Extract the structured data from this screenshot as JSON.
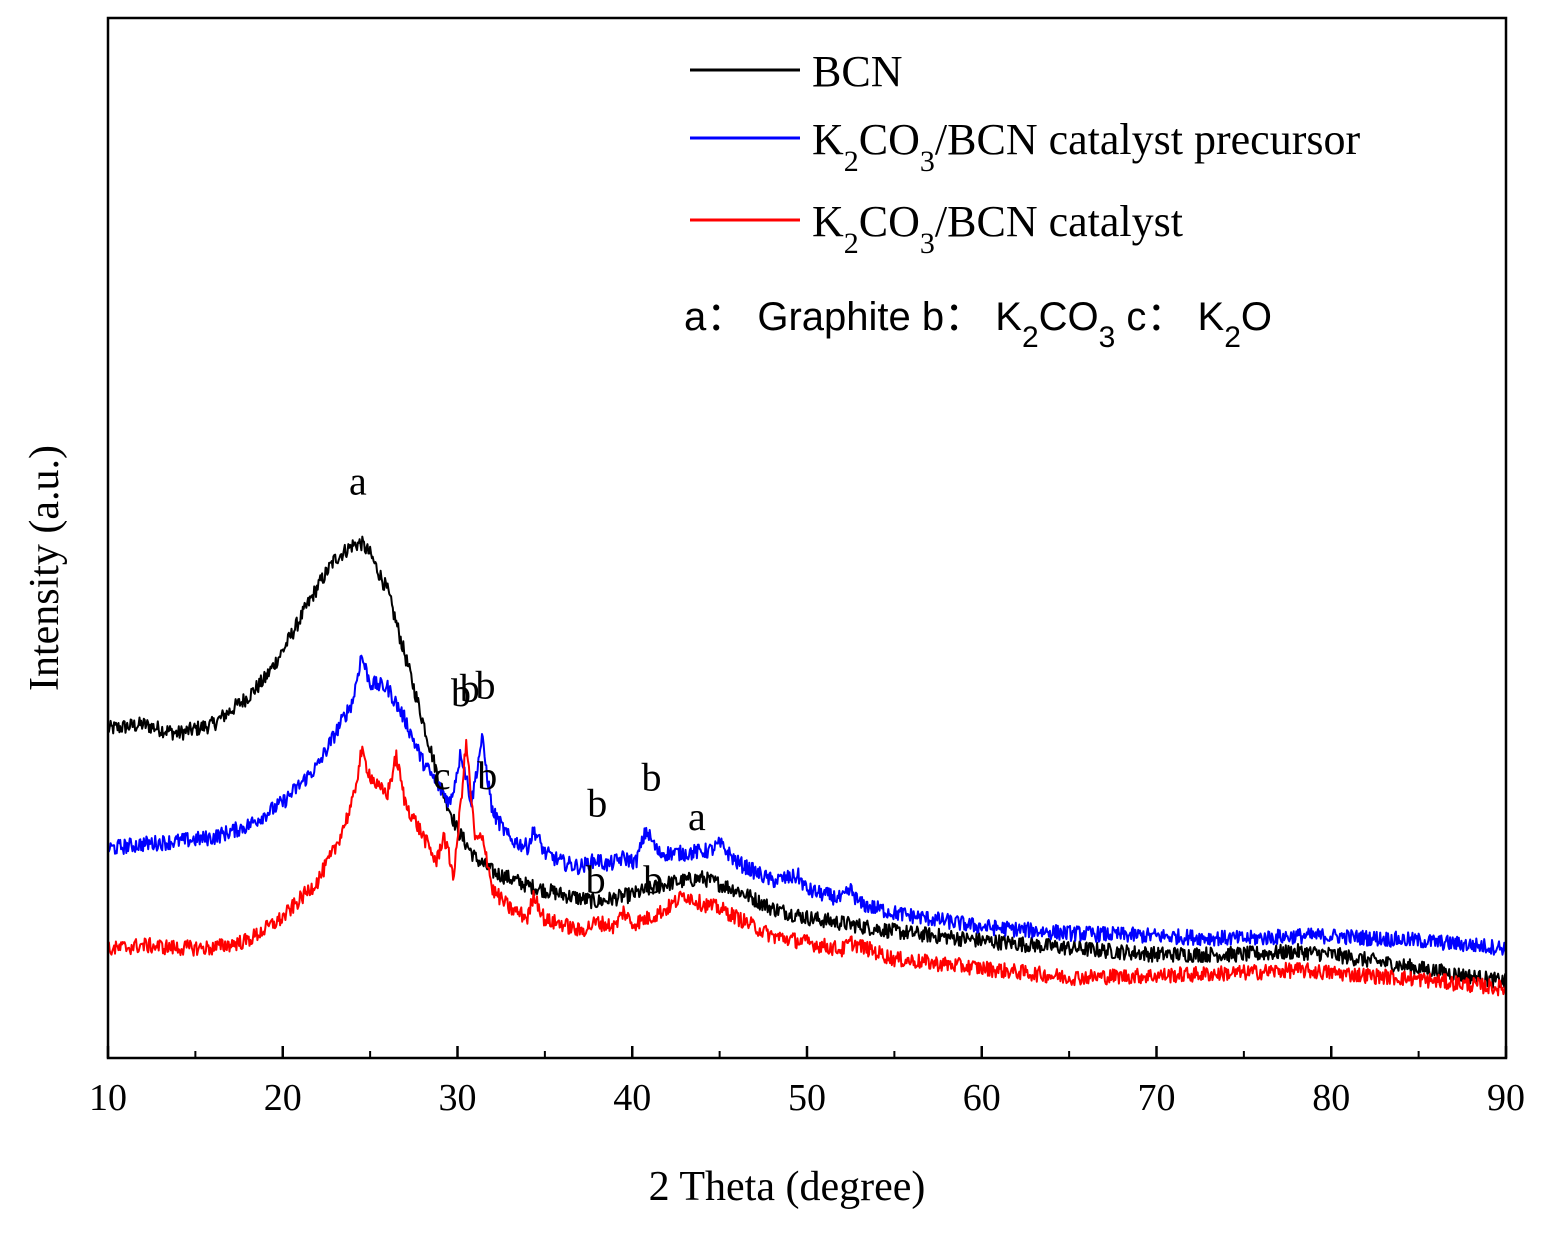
{
  "chart_data": {
    "type": "line",
    "xlabel": "2 Theta (degree)",
    "ylabel": "Intensity (a.u.)",
    "xlim": [
      10,
      90
    ],
    "x_ticks": [
      "10",
      "20",
      "30",
      "40",
      "50",
      "60",
      "70",
      "80",
      "90"
    ],
    "y_ticks_shown": false,
    "legend_position": "top-right",
    "series": [
      {
        "name": "BCN",
        "color": "#000000",
        "points": [
          [
            10,
            3.0
          ],
          [
            12,
            3.05
          ],
          [
            14,
            2.95
          ],
          [
            16,
            3.05
          ],
          [
            18,
            3.35
          ],
          [
            19,
            3.55
          ],
          [
            20,
            3.85
          ],
          [
            21,
            4.2
          ],
          [
            22,
            4.55
          ],
          [
            23,
            4.85
          ],
          [
            24,
            5.0
          ],
          [
            24.5,
            5.02
          ],
          [
            25,
            4.9
          ],
          [
            26,
            4.5
          ],
          [
            27,
            3.8
          ],
          [
            28,
            3.1
          ],
          [
            29,
            2.4
          ],
          [
            30,
            1.9
          ],
          [
            31,
            1.6
          ],
          [
            32,
            1.45
          ],
          [
            34,
            1.3
          ],
          [
            36,
            1.2
          ],
          [
            38,
            1.12
          ],
          [
            40,
            1.2
          ],
          [
            42,
            1.32
          ],
          [
            44,
            1.38
          ],
          [
            46,
            1.25
          ],
          [
            48,
            1.05
          ],
          [
            50,
            0.95
          ],
          [
            55,
            0.8
          ],
          [
            60,
            0.7
          ],
          [
            65,
            0.62
          ],
          [
            70,
            0.55
          ],
          [
            75,
            0.55
          ],
          [
            78,
            0.58
          ],
          [
            80,
            0.55
          ],
          [
            85,
            0.4
          ],
          [
            90,
            0.25
          ]
        ]
      },
      {
        "name": "K2CO3/BCN catalyst precursor",
        "color": "#0000ff",
        "points": [
          [
            10,
            1.7
          ],
          [
            12,
            1.75
          ],
          [
            14,
            1.78
          ],
          [
            16,
            1.82
          ],
          [
            18,
            1.95
          ],
          [
            20,
            2.2
          ],
          [
            22,
            2.6
          ],
          [
            23,
            2.95
          ],
          [
            24,
            3.3
          ],
          [
            24.5,
            3.8
          ],
          [
            25,
            3.5
          ],
          [
            26,
            3.45
          ],
          [
            27,
            3.1
          ],
          [
            28,
            2.65
          ],
          [
            29,
            2.35
          ],
          [
            29.6,
            2.2
          ],
          [
            30.2,
            2.75
          ],
          [
            30.8,
            2.2
          ],
          [
            31.4,
            2.9
          ],
          [
            32,
            2.1
          ],
          [
            33,
            1.8
          ],
          [
            34,
            1.72
          ],
          [
            34.4,
            1.9
          ],
          [
            35,
            1.65
          ],
          [
            36,
            1.55
          ],
          [
            37,
            1.5
          ],
          [
            38,
            1.58
          ],
          [
            38.6,
            1.52
          ],
          [
            39.5,
            1.6
          ],
          [
            40.2,
            1.55
          ],
          [
            40.8,
            1.9
          ],
          [
            41.5,
            1.65
          ],
          [
            43,
            1.65
          ],
          [
            44.5,
            1.68
          ],
          [
            45,
            1.75
          ],
          [
            46,
            1.55
          ],
          [
            48,
            1.35
          ],
          [
            49.5,
            1.4
          ],
          [
            50,
            1.25
          ],
          [
            52,
            1.15
          ],
          [
            52.5,
            1.25
          ],
          [
            53,
            1.1
          ],
          [
            55,
            1.0
          ],
          [
            60,
            0.85
          ],
          [
            65,
            0.78
          ],
          [
            70,
            0.75
          ],
          [
            75,
            0.72
          ],
          [
            78,
            0.75
          ],
          [
            80,
            0.75
          ],
          [
            85,
            0.7
          ],
          [
            90,
            0.62
          ]
        ]
      },
      {
        "name": "K2CO3/BCN catalyst",
        "color": "#ff0000",
        "points": [
          [
            10,
            0.6
          ],
          [
            12,
            0.65
          ],
          [
            14,
            0.62
          ],
          [
            16,
            0.62
          ],
          [
            18,
            0.7
          ],
          [
            20,
            0.95
          ],
          [
            22,
            1.35
          ],
          [
            23,
            1.7
          ],
          [
            24,
            2.2
          ],
          [
            24.5,
            2.75
          ],
          [
            25,
            2.5
          ],
          [
            25.5,
            2.35
          ],
          [
            26,
            2.3
          ],
          [
            26.5,
            2.7
          ],
          [
            27,
            2.2
          ],
          [
            28,
            1.85
          ],
          [
            28.8,
            1.55
          ],
          [
            29.2,
            1.85
          ],
          [
            29.8,
            1.4
          ],
          [
            30.5,
            2.85
          ],
          [
            31,
            1.8
          ],
          [
            31.5,
            1.8
          ],
          [
            32,
            1.25
          ],
          [
            33,
            1.05
          ],
          [
            34,
            0.95
          ],
          [
            34.4,
            1.2
          ],
          [
            35,
            0.92
          ],
          [
            36,
            0.88
          ],
          [
            37,
            0.8
          ],
          [
            38,
            0.9
          ],
          [
            39,
            0.85
          ],
          [
            39.5,
            1.02
          ],
          [
            40,
            0.88
          ],
          [
            41,
            0.95
          ],
          [
            42,
            1.05
          ],
          [
            43,
            1.2
          ],
          [
            44,
            1.1
          ],
          [
            45,
            1.05
          ],
          [
            46,
            0.95
          ],
          [
            48,
            0.75
          ],
          [
            50,
            0.68
          ],
          [
            52,
            0.6
          ],
          [
            52.5,
            0.68
          ],
          [
            55,
            0.5
          ],
          [
            60,
            0.4
          ],
          [
            65,
            0.3
          ],
          [
            70,
            0.32
          ],
          [
            75,
            0.35
          ],
          [
            78,
            0.38
          ],
          [
            80,
            0.35
          ],
          [
            85,
            0.28
          ],
          [
            90,
            0.18
          ]
        ]
      }
    ],
    "peak_labels": [
      {
        "text": "a",
        "series": "BCN",
        "x": 24.3,
        "y": 5.55
      },
      {
        "text": "a",
        "series": "BCN",
        "x": 43.7,
        "y": 1.9
      },
      {
        "text": "b",
        "series": "K2CO3/BCN catalyst precursor",
        "x": 30.2,
        "y": 3.25
      },
      {
        "text": "b",
        "series": "K2CO3/BCN catalyst precursor",
        "x": 31.6,
        "y": 3.33
      },
      {
        "text": "b",
        "series": "K2CO3/BCN catalyst precursor",
        "x": 38.0,
        "y": 2.05
      },
      {
        "text": "b",
        "series": "K2CO3/BCN catalyst precursor",
        "x": 41.1,
        "y": 2.33
      },
      {
        "text": "b",
        "series": "K2CO3/BCN catalyst",
        "x": 30.7,
        "y": 3.3
      },
      {
        "text": "c",
        "series": "K2CO3/BCN catalyst",
        "x": 29.1,
        "y": 2.35
      },
      {
        "text": "b",
        "series": "K2CO3/BCN catalyst",
        "x": 31.7,
        "y": 2.35
      },
      {
        "text": "b",
        "series": "K2CO3/BCN catalyst",
        "x": 37.9,
        "y": 1.22
      },
      {
        "text": "b",
        "series": "K2CO3/BCN catalyst",
        "x": 41.2,
        "y": 1.22
      }
    ],
    "legend": {
      "entries": [
        {
          "color": "#000000",
          "parts": [
            {
              "t": "BCN"
            }
          ]
        },
        {
          "color": "#0000ff",
          "parts": [
            {
              "t": "K"
            },
            {
              "t": "2",
              "sub": true
            },
            {
              "t": "CO"
            },
            {
              "t": "3",
              "sub": true
            },
            {
              "t": "/BCN catalyst precursor"
            }
          ]
        },
        {
          "color": "#ff0000",
          "parts": [
            {
              "t": "K"
            },
            {
              "t": "2",
              "sub": true
            },
            {
              "t": "CO"
            },
            {
              "t": "3",
              "sub": true
            },
            {
              "t": "/BCN catalyst"
            }
          ]
        }
      ],
      "note_parts": [
        {
          "t": "a： Graphite  b： K"
        },
        {
          "t": "2",
          "sub": true
        },
        {
          "t": "CO"
        },
        {
          "t": "3",
          "sub": true
        },
        {
          "t": " c： K"
        },
        {
          "t": "2",
          "sub": true
        },
        {
          "t": "O"
        }
      ]
    }
  }
}
